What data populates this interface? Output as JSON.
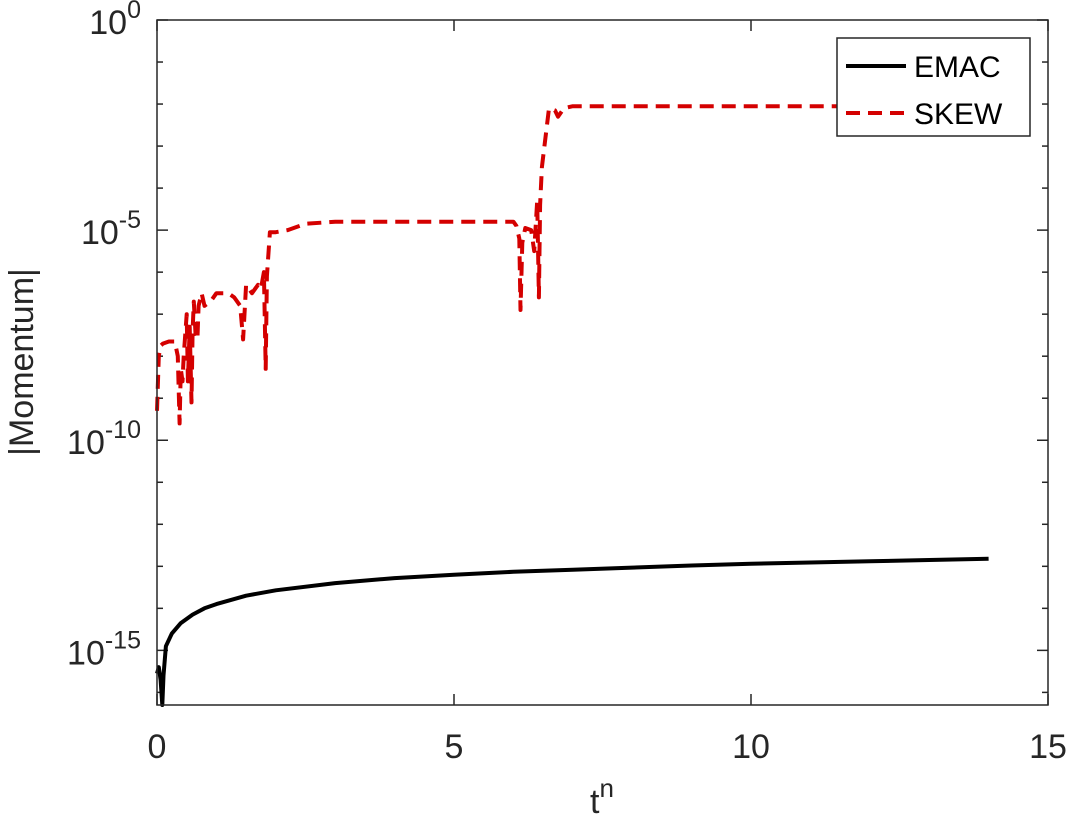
{
  "chart_data": {
    "type": "line",
    "xlabel_base": "t",
    "xlabel_sup": "n",
    "ylabel": "|Momentum|",
    "xlim": [
      0,
      15
    ],
    "ylim_log10": [
      -16.3,
      0
    ],
    "yscale": "log",
    "grid": false,
    "legend_position": "top-right",
    "xticks": [
      {
        "value": 0,
        "label": "0"
      },
      {
        "value": 5,
        "label": "5"
      },
      {
        "value": 10,
        "label": "10"
      },
      {
        "value": 15,
        "label": "15"
      }
    ],
    "yticks": [
      {
        "exp": 0,
        "base": "10",
        "sup": "0"
      },
      {
        "exp": -5,
        "base": "10",
        "sup": "-5"
      },
      {
        "exp": -10,
        "base": "10",
        "sup": "-10"
      },
      {
        "exp": -15,
        "base": "10",
        "sup": "-15"
      }
    ],
    "series": [
      {
        "name": "EMAC",
        "color": "#000000",
        "style": "solid",
        "points": [
          [
            0.0,
            -15.55
          ],
          [
            0.03,
            -15.4
          ],
          [
            0.06,
            -15.7
          ],
          [
            0.09,
            -16.3
          ],
          [
            0.11,
            -15.6
          ],
          [
            0.15,
            -14.9
          ],
          [
            0.25,
            -14.6
          ],
          [
            0.4,
            -14.35
          ],
          [
            0.6,
            -14.15
          ],
          [
            0.8,
            -14.0
          ],
          [
            1.0,
            -13.9
          ],
          [
            1.5,
            -13.7
          ],
          [
            2.0,
            -13.57
          ],
          [
            3.0,
            -13.4
          ],
          [
            4.0,
            -13.28
          ],
          [
            5.0,
            -13.2
          ],
          [
            6.0,
            -13.13
          ],
          [
            7.0,
            -13.08
          ],
          [
            8.0,
            -13.03
          ],
          [
            9.0,
            -12.98
          ],
          [
            10.0,
            -12.94
          ],
          [
            11.0,
            -12.91
          ],
          [
            12.0,
            -12.88
          ],
          [
            13.0,
            -12.85
          ],
          [
            14.0,
            -12.82
          ]
        ]
      },
      {
        "name": "SKEW",
        "color": "#d40000",
        "style": "dashed",
        "points": [
          [
            0.0,
            -9.3
          ],
          [
            0.03,
            -8.0
          ],
          [
            0.06,
            -7.75
          ],
          [
            0.1,
            -7.7
          ],
          [
            0.2,
            -7.65
          ],
          [
            0.3,
            -7.65
          ],
          [
            0.35,
            -8.0
          ],
          [
            0.38,
            -9.6
          ],
          [
            0.4,
            -8.3
          ],
          [
            0.43,
            -8.6
          ],
          [
            0.45,
            -8.0
          ],
          [
            0.48,
            -7.4
          ],
          [
            0.5,
            -7.0
          ],
          [
            0.52,
            -8.6
          ],
          [
            0.55,
            -7.3
          ],
          [
            0.58,
            -9.1
          ],
          [
            0.6,
            -7.4
          ],
          [
            0.62,
            -6.7
          ],
          [
            0.65,
            -7.5
          ],
          [
            0.68,
            -7.6
          ],
          [
            0.7,
            -6.8
          ],
          [
            0.75,
            -6.5
          ],
          [
            0.8,
            -6.8
          ],
          [
            0.9,
            -6.7
          ],
          [
            1.0,
            -6.5
          ],
          [
            1.2,
            -6.5
          ],
          [
            1.3,
            -6.6
          ],
          [
            1.4,
            -6.8
          ],
          [
            1.45,
            -7.6
          ],
          [
            1.5,
            -6.3
          ],
          [
            1.6,
            -6.5
          ],
          [
            1.7,
            -6.3
          ],
          [
            1.75,
            -6.4
          ],
          [
            1.8,
            -6.0
          ],
          [
            1.83,
            -8.3
          ],
          [
            1.85,
            -6.1
          ],
          [
            1.9,
            -5.05
          ],
          [
            2.0,
            -5.05
          ],
          [
            2.2,
            -5.0
          ],
          [
            2.5,
            -4.85
          ],
          [
            3.0,
            -4.8
          ],
          [
            4.0,
            -4.8
          ],
          [
            5.0,
            -4.8
          ],
          [
            6.0,
            -4.8
          ],
          [
            6.05,
            -4.9
          ],
          [
            6.1,
            -5.2
          ],
          [
            6.12,
            -6.9
          ],
          [
            6.15,
            -5.3
          ],
          [
            6.2,
            -4.95
          ],
          [
            6.3,
            -5.0
          ],
          [
            6.35,
            -5.5
          ],
          [
            6.4,
            -4.3
          ],
          [
            6.43,
            -6.6
          ],
          [
            6.45,
            -4.4
          ],
          [
            6.48,
            -3.5
          ],
          [
            6.6,
            -2.1
          ],
          [
            6.7,
            -2.15
          ],
          [
            6.75,
            -2.3
          ],
          [
            6.85,
            -2.1
          ],
          [
            7.0,
            -2.05
          ],
          [
            9.0,
            -2.05
          ],
          [
            11.0,
            -2.05
          ],
          [
            14.0,
            -2.05
          ]
        ]
      }
    ]
  }
}
